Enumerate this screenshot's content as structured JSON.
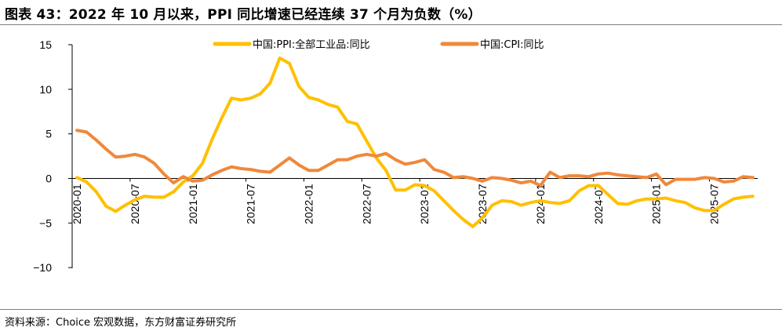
{
  "header": {
    "title": "图表 43：2022 年 10 月以来，PPI 同比增速已经连续 37 个月为负数（%）"
  },
  "footer": {
    "source": "资料来源：Choice 宏观数据，东方财富证券研究所"
  },
  "chart_data": {
    "type": "line",
    "title": "",
    "xlabel": "",
    "ylabel": "",
    "ylim": [
      -10,
      15
    ],
    "yticks": [
      15,
      10,
      5,
      0,
      -5,
      -10
    ],
    "ytick_labels": [
      "15",
      "10",
      "5",
      "0",
      "−5",
      "−10"
    ],
    "xtick_labels": [
      "2020-01",
      "2020-07",
      "2021-01",
      "2021-07",
      "2022-01",
      "2022-07",
      "2023-01",
      "2023-07",
      "2024-01",
      "2024-07",
      "2025-01",
      "2025-07"
    ],
    "grid": false,
    "legend_position": "top",
    "x": [
      "2020-01",
      "2020-02",
      "2020-03",
      "2020-04",
      "2020-05",
      "2020-06",
      "2020-07",
      "2020-08",
      "2020-09",
      "2020-10",
      "2020-11",
      "2020-12",
      "2021-01",
      "2021-02",
      "2021-03",
      "2021-04",
      "2021-05",
      "2021-06",
      "2021-07",
      "2021-08",
      "2021-09",
      "2021-10",
      "2021-11",
      "2021-12",
      "2022-01",
      "2022-02",
      "2022-03",
      "2022-04",
      "2022-05",
      "2022-06",
      "2022-07",
      "2022-08",
      "2022-09",
      "2022-10",
      "2022-11",
      "2022-12",
      "2023-01",
      "2023-02",
      "2023-03",
      "2023-04",
      "2023-05",
      "2023-06",
      "2023-07",
      "2023-08",
      "2023-09",
      "2023-10",
      "2023-11",
      "2023-12",
      "2024-01",
      "2024-02",
      "2024-03",
      "2024-04",
      "2024-05",
      "2024-06",
      "2024-07",
      "2024-08",
      "2024-09",
      "2024-10",
      "2024-11",
      "2024-12",
      "2025-01",
      "2025-02",
      "2025-03",
      "2025-04",
      "2025-05",
      "2025-06",
      "2025-07",
      "2025-08",
      "2025-09",
      "2025-10",
      "2025-11"
    ],
    "series": [
      {
        "name": "中国:PPI:全部工业品:同比",
        "color": "#FFC000",
        "values": [
          0.1,
          -0.4,
          -1.5,
          -3.1,
          -3.7,
          -3.0,
          -2.4,
          -2.0,
          -2.1,
          -2.1,
          -1.5,
          -0.4,
          0.3,
          1.7,
          4.4,
          6.8,
          9.0,
          8.8,
          9.0,
          9.5,
          10.7,
          13.5,
          12.9,
          10.3,
          9.1,
          8.8,
          8.3,
          8.0,
          6.4,
          6.1,
          4.2,
          2.3,
          0.9,
          -1.3,
          -1.3,
          -0.7,
          -0.8,
          -1.4,
          -2.5,
          -3.6,
          -4.6,
          -5.4,
          -4.4,
          -3.0,
          -2.5,
          -2.6,
          -3.0,
          -2.7,
          -2.5,
          -2.7,
          -2.8,
          -2.5,
          -1.4,
          -0.8,
          -0.8,
          -1.8,
          -2.8,
          -2.9,
          -2.5,
          -2.3,
          -2.3,
          -2.2,
          -2.5,
          -2.7,
          -3.3,
          -3.6,
          -3.6,
          -2.9,
          -2.3,
          -2.1,
          -2.0
        ]
      },
      {
        "name": "中国:CPI:同比",
        "color": "#F0883A",
        "values": [
          5.4,
          5.2,
          4.3,
          3.3,
          2.4,
          2.5,
          2.7,
          2.4,
          1.7,
          0.5,
          -0.5,
          0.2,
          -0.3,
          -0.2,
          0.4,
          0.9,
          1.3,
          1.1,
          1.0,
          0.8,
          0.7,
          1.5,
          2.3,
          1.5,
          0.9,
          0.9,
          1.5,
          2.1,
          2.1,
          2.5,
          2.7,
          2.5,
          2.8,
          2.1,
          1.6,
          1.8,
          2.1,
          1.0,
          0.7,
          0.1,
          0.2,
          0.0,
          -0.3,
          0.1,
          0.0,
          -0.2,
          -0.5,
          -0.3,
          -0.8,
          0.7,
          0.1,
          0.3,
          0.3,
          0.2,
          0.5,
          0.6,
          0.4,
          0.3,
          0.2,
          0.1,
          0.5,
          -0.7,
          -0.1,
          -0.1,
          -0.1,
          0.1,
          0.0,
          -0.4,
          -0.3,
          0.2,
          0.1
        ]
      }
    ]
  }
}
